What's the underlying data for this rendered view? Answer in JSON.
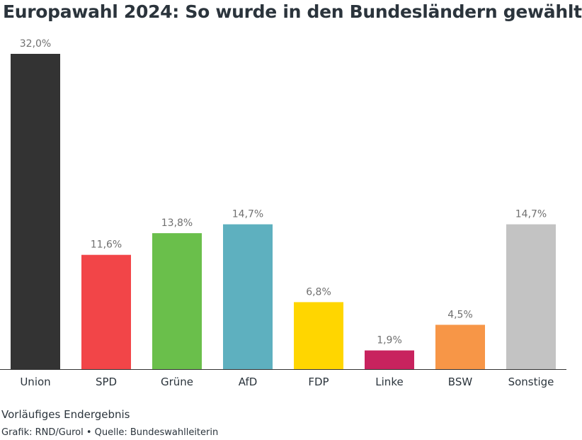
{
  "header": {
    "title": "Europawahl 2024: So wurde in den Bundesländern gewählt"
  },
  "footer": {
    "note": "Vorläufiges Endergebnis",
    "credit": "Grafik: RND/Gurol • Quelle: Bundeswahlleiterin"
  },
  "chart_data": {
    "type": "bar",
    "title": "Europawahl 2024: So wurde in den Bundesländern gewählt",
    "categories": [
      "Union",
      "SPD",
      "Grüne",
      "AfD",
      "FDP",
      "Linke",
      "BSW",
      "Sonstige"
    ],
    "values": [
      32.0,
      11.6,
      13.8,
      14.7,
      6.8,
      1.9,
      4.5,
      14.7
    ],
    "value_labels": [
      "32,0%",
      "11,6%",
      "13,8%",
      "14,7%",
      "6,8%",
      "1,9%",
      "4,5%",
      "14,7%"
    ],
    "colors": [
      "#333333",
      "#f24548",
      "#6abf4b",
      "#5eb0bf",
      "#ffd600",
      "#c8235e",
      "#f79647",
      "#c3c3c3"
    ],
    "xlabel": "",
    "ylabel": "",
    "ylim": [
      0,
      32
    ],
    "grid": false,
    "legend": "none",
    "axis_color": "#333333"
  }
}
